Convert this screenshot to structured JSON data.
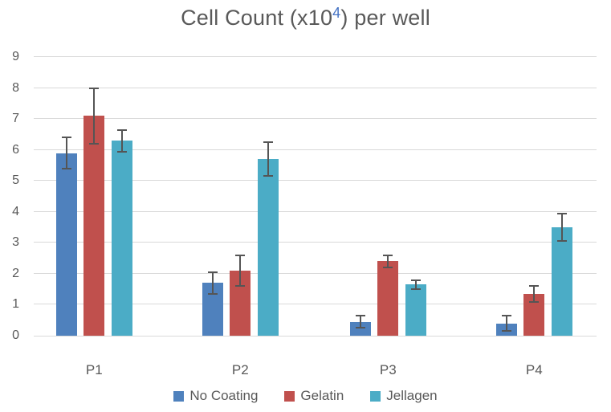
{
  "title": {
    "prefix": "Cell Count (x10",
    "superscript": "4",
    "suffix": ") per well"
  },
  "colors": {
    "title_text": "#595959",
    "title_superscript": "#4472C4",
    "axis_text": "#595959",
    "gridline": "#D9D9D9",
    "axis_line": "#D9D9D9",
    "error_bar": "#555555",
    "series_no_coating": "#4F81BD",
    "series_gelatin": "#C0504D",
    "series_jellagen": "#4BACC6",
    "background": "#FFFFFF"
  },
  "chart_data": {
    "type": "bar",
    "title": "Cell Count (x10^4) per well",
    "xlabel": "",
    "ylabel": "",
    "categories": [
      "P1",
      "P2",
      "P3",
      "P4"
    ],
    "series": [
      {
        "name": "No Coating",
        "color": "#4F81BD",
        "values": [
          5.9,
          1.7,
          0.45,
          0.4
        ],
        "errors": [
          0.5,
          0.35,
          0.2,
          0.25
        ]
      },
      {
        "name": "Gelatin",
        "color": "#C0504D",
        "values": [
          7.1,
          2.1,
          2.4,
          1.35
        ],
        "errors": [
          0.9,
          0.5,
          0.2,
          0.25
        ]
      },
      {
        "name": "Jellagen",
        "color": "#4BACC6",
        "values": [
          6.3,
          5.7,
          1.65,
          3.5
        ],
        "errors": [
          0.35,
          0.55,
          0.15,
          0.45
        ]
      }
    ],
    "ylim": [
      0,
      9
    ],
    "yticks": [
      0,
      1,
      2,
      3,
      4,
      5,
      6,
      7,
      8,
      9
    ],
    "grid": true,
    "legend_position": "bottom"
  },
  "legend": {
    "items": [
      {
        "label": "No Coating",
        "color": "#4F81BD"
      },
      {
        "label": "Gelatin",
        "color": "#C0504D"
      },
      {
        "label": "Jellagen",
        "color": "#4BACC6"
      }
    ]
  }
}
